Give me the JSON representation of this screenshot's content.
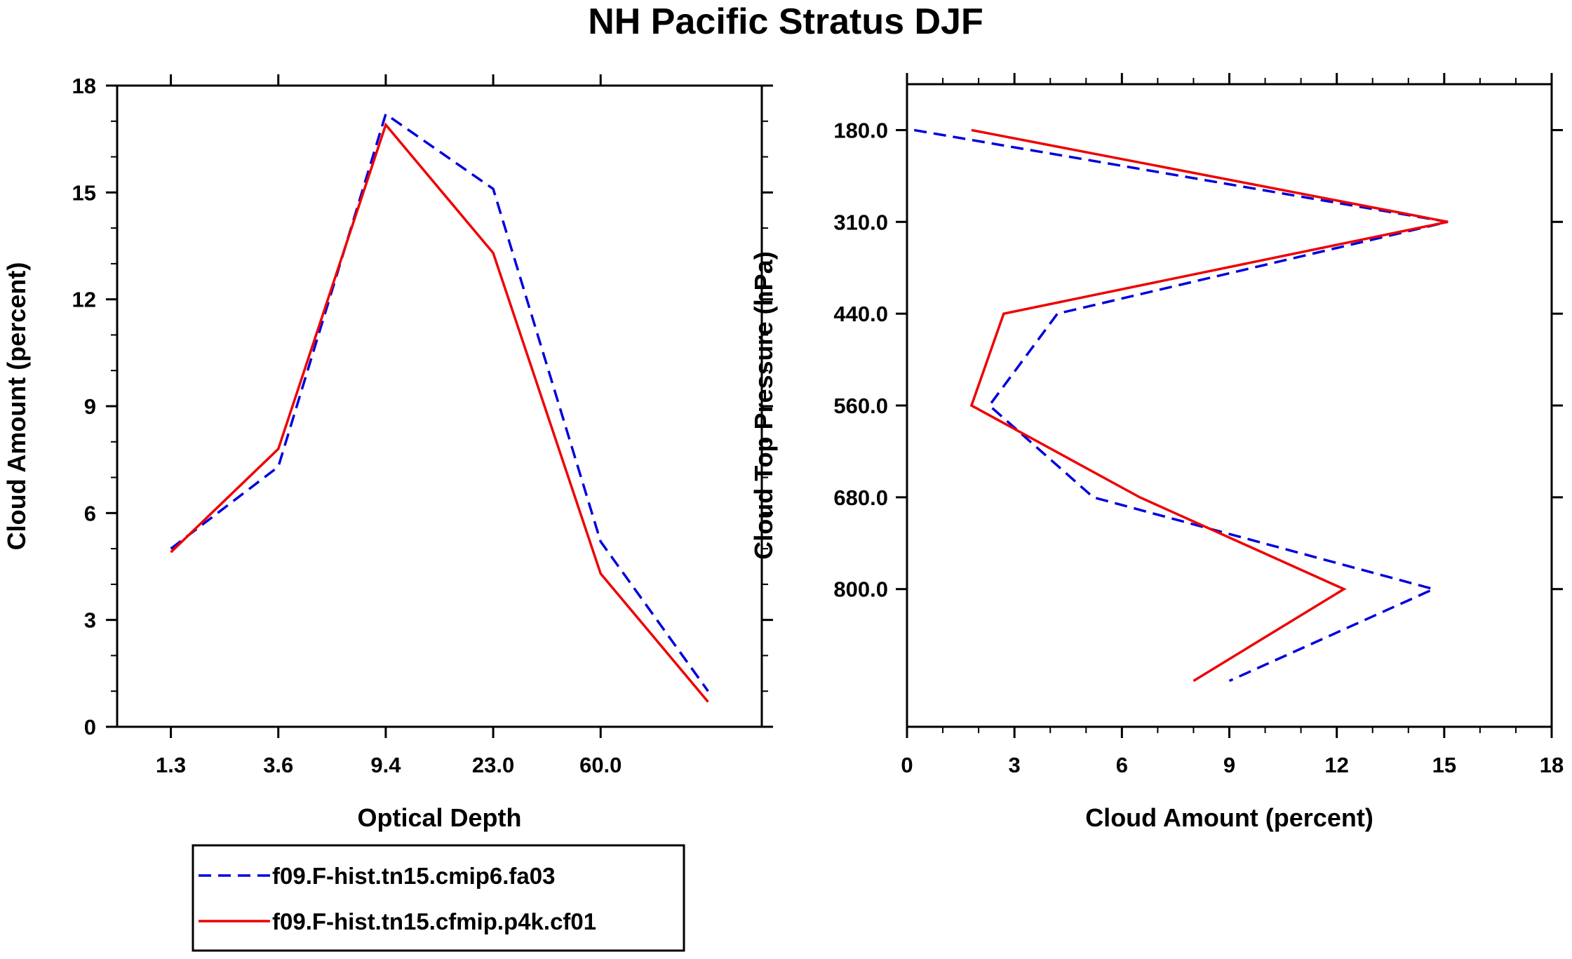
{
  "title": "NH Pacific Stratus DJF",
  "colors": {
    "s1": "#0000dd",
    "s2": "#ee0000",
    "axis": "#000000"
  },
  "legend": {
    "placement": "bottom-left",
    "entries": [
      {
        "name": "f09.F-hist.tn15.cmip6.fa03",
        "style": "dashed",
        "color": "#0000dd"
      },
      {
        "name": "f09.F-hist.tn15.cfmip.p4k.cf01",
        "style": "solid",
        "color": "#ee0000"
      }
    ]
  },
  "chart_data": [
    {
      "type": "line",
      "xlabel": "Optical Depth",
      "ylabel": "Cloud Amount (percent)",
      "x_index": [
        0,
        1,
        2,
        3,
        4,
        5
      ],
      "xlim": [
        -0.5,
        5.5
      ],
      "x_tick_positions": [
        0,
        1,
        2,
        3,
        4
      ],
      "x_tick_labels": [
        "1.3",
        "3.6",
        "9.4",
        "23.0",
        "60.0"
      ],
      "ylim": [
        0,
        18
      ],
      "y_ticks": [
        0,
        3,
        6,
        9,
        12,
        15,
        18
      ],
      "y_tick_labels": [
        "0",
        "3",
        "6",
        "9",
        "12",
        "15",
        "18"
      ],
      "series": [
        {
          "name": "f09.F-hist.tn15.cmip6.fa03",
          "style": "dashed",
          "values": [
            5.0,
            7.3,
            17.2,
            15.1,
            5.2,
            1.0
          ]
        },
        {
          "name": "f09.F-hist.tn15.cfmip.p4k.cf01",
          "style": "solid",
          "values": [
            4.9,
            7.8,
            16.9,
            13.3,
            4.3,
            0.7
          ]
        }
      ]
    },
    {
      "type": "line",
      "orientation": "vertical",
      "xlabel": "Cloud Amount (percent)",
      "ylabel": "Cloud Top Pressure (hPa)",
      "xlim": [
        0,
        18
      ],
      "x_ticks": [
        0,
        3,
        6,
        9,
        12,
        15,
        18
      ],
      "x_tick_labels": [
        "0",
        "3",
        "6",
        "9",
        "12",
        "15",
        "18"
      ],
      "levels_index": [
        0,
        1,
        2,
        3,
        4,
        5,
        6
      ],
      "ylim_index": [
        -0.5,
        6.5
      ],
      "y_tick_positions": [
        0,
        1,
        2,
        3,
        4,
        5
      ],
      "y_tick_labels": [
        "180.0",
        "310.0",
        "440.0",
        "560.0",
        "680.0",
        "800.0"
      ],
      "series": [
        {
          "name": "f09.F-hist.tn15.cmip6.fa03",
          "style": "dashed",
          "values": [
            0.2,
            15.1,
            4.2,
            2.3,
            5.2,
            14.7,
            9.0
          ]
        },
        {
          "name": "f09.F-hist.tn15.cfmip.p4k.cf01",
          "style": "solid",
          "values": [
            1.8,
            15.1,
            2.7,
            1.8,
            6.5,
            12.2,
            8.0
          ]
        }
      ]
    }
  ]
}
